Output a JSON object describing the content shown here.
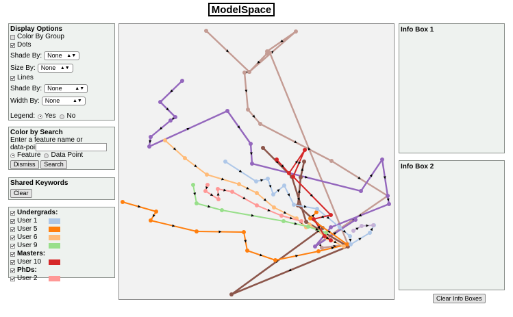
{
  "app": {
    "title": "ModelSpace"
  },
  "display_options": {
    "title": "Display Options",
    "color_by_group": "Color By Group",
    "dots": "Dots",
    "dots_shade_label": "Shade By:",
    "dots_shade_value": "None",
    "size_label": "Size By:",
    "size_value": "None",
    "lines": "Lines",
    "lines_shade_label": "Shade By:",
    "lines_shade_value": "None",
    "width_label": "Width By:",
    "width_value": "None",
    "legend_label": "Legend:",
    "legend_yes": "Yes",
    "legend_no": "No"
  },
  "color_search": {
    "title": "Color by Search",
    "instructions": "Enter a feature name or data-point number.",
    "feature": "Feature",
    "data_point": "Data Point",
    "dismiss": "Dismiss",
    "search": "Search"
  },
  "shared_keywords": {
    "title": "Shared Keywords",
    "clear": "Clear"
  },
  "legend": {
    "groups": [
      {
        "label": "Undergrads:",
        "users": [
          {
            "label": "User 1",
            "color": "#aec7e8"
          },
          {
            "label": "User 5",
            "color": "#ff7f0e"
          },
          {
            "label": "User 6",
            "color": "#ffbb78"
          },
          {
            "label": "User 9",
            "color": "#98df8a"
          }
        ]
      },
      {
        "label": "Masters:",
        "users": [
          {
            "label": "User 10",
            "color": "#d62728"
          }
        ]
      },
      {
        "label": "PhDs:",
        "users": [
          {
            "label": "User 2",
            "color": "#ff9896"
          }
        ]
      }
    ]
  },
  "info_box_1": {
    "title": "Info Box 1"
  },
  "info_box_2": {
    "title": "Info Box 2"
  },
  "clear_info": "Clear Info Boxes",
  "trajectories": [
    {
      "name": "tan-path",
      "color": "#c49c94",
      "width": 2.4,
      "points": [
        [
          301,
          45
        ],
        [
          364,
          105
        ],
        [
          357,
          106
        ],
        [
          362,
          160
        ],
        [
          380,
          181
        ],
        [
          484,
          235
        ],
        [
          566,
          286
        ],
        [
          466,
          355
        ],
        [
          470,
          362
        ],
        [
          508,
          357
        ],
        [
          394,
          77
        ],
        [
          390,
          78
        ],
        [
          364,
          105
        ],
        [
          432,
          46
        ],
        [
          390,
          75
        ]
      ]
    },
    {
      "name": "purple-path",
      "color": "#9467bd",
      "width": 2.4,
      "points": [
        [
          266,
          118
        ],
        [
          234,
          149
        ],
        [
          256,
          171
        ],
        [
          249,
          176
        ],
        [
          220,
          200
        ],
        [
          218,
          214
        ],
        [
          332,
          162
        ],
        [
          366,
          210
        ],
        [
          368,
          239
        ],
        [
          527,
          279
        ],
        [
          558,
          233
        ],
        [
          566,
          286
        ],
        [
          568,
          298
        ],
        [
          483,
          332
        ],
        [
          460,
          360
        ],
        [
          519,
          321
        ]
      ]
    },
    {
      "name": "brown-path",
      "color": "#8c564b",
      "width": 2.6,
      "points": [
        [
          384,
          216
        ],
        [
          426,
          258
        ],
        [
          447,
          324
        ],
        [
          508,
          360
        ],
        [
          338,
          430
        ],
        [
          471,
          333
        ],
        [
          435,
          300
        ],
        [
          439,
          259
        ],
        [
          444,
          236
        ]
      ]
    },
    {
      "name": "orange-path",
      "color": "#ff7f0e",
      "width": 2,
      "points": [
        [
          179,
          295
        ],
        [
          228,
          309
        ],
        [
          220,
          322
        ],
        [
          287,
          338
        ],
        [
          356,
          339
        ],
        [
          361,
          366
        ],
        [
          402,
          380
        ],
        [
          465,
          367
        ],
        [
          507,
          357
        ],
        [
          453,
          319
        ],
        [
          462,
          310
        ]
      ]
    },
    {
      "name": "peach-path",
      "color": "#ffbb78",
      "width": 2,
      "points": [
        [
          241,
          205
        ],
        [
          270,
          231
        ],
        [
          302,
          255
        ],
        [
          349,
          269
        ],
        [
          375,
          282
        ],
        [
          400,
          303
        ],
        [
          433,
          319
        ],
        [
          447,
          332
        ],
        [
          452,
          328
        ],
        [
          478,
          348
        ],
        [
          502,
          360
        ]
      ]
    },
    {
      "name": "green-path",
      "color": "#98df8a",
      "width": 2,
      "points": [
        [
          282,
          270
        ],
        [
          287,
          297
        ],
        [
          324,
          307
        ],
        [
          414,
          323
        ],
        [
          450,
          331
        ],
        [
          476,
          340
        ]
      ]
    },
    {
      "name": "pink-path",
      "color": "#ff9896",
      "width": 2,
      "points": [
        [
          303,
          270
        ],
        [
          300,
          279
        ],
        [
          319,
          291
        ],
        [
          318,
          276
        ],
        [
          339,
          280
        ],
        [
          375,
          300
        ],
        [
          411,
          315
        ],
        [
          440,
          323
        ]
      ]
    },
    {
      "name": "lightblue-path",
      "color": "#aec7e8",
      "width": 2,
      "points": [
        [
          329,
          236
        ],
        [
          374,
          265
        ],
        [
          391,
          261
        ],
        [
          399,
          284
        ],
        [
          415,
          271
        ],
        [
          429,
          299
        ],
        [
          463,
          305
        ],
        [
          496,
          332
        ],
        [
          511,
          345
        ],
        [
          512,
          357
        ],
        [
          540,
          340
        ],
        [
          546,
          329
        ]
      ]
    },
    {
      "name": "lavender-path",
      "color": "#c5b0d5",
      "width": 2,
      "points": [
        [
          516,
          337
        ],
        [
          528,
          330
        ],
        [
          545,
          329
        ]
      ]
    },
    {
      "name": "red-path",
      "color": "#d62728",
      "width": 2,
      "points": [
        [
          404,
          233
        ],
        [
          422,
          253
        ],
        [
          445,
          219
        ],
        [
          428,
          258
        ],
        [
          483,
          314
        ],
        [
          458,
          320
        ],
        [
          474,
          345
        ],
        [
          483,
          351
        ]
      ]
    }
  ]
}
